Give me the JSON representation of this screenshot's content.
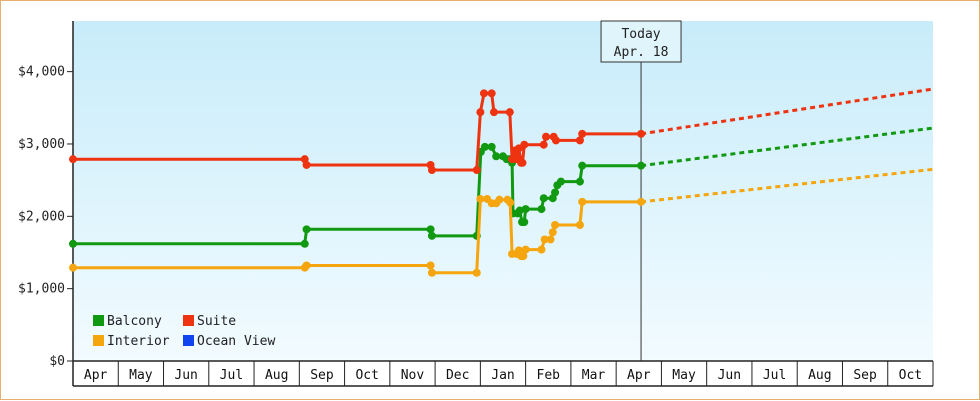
{
  "chart_data": {
    "type": "line",
    "title": "",
    "xlabel": "",
    "ylabel": "",
    "ylim": [
      0,
      4700
    ],
    "grid": true,
    "legend_placement": "bottom-left",
    "yticks": [
      {
        "value": 0,
        "label": "$0"
      },
      {
        "value": 1000,
        "label": "$1,000"
      },
      {
        "value": 2000,
        "label": "$2,000"
      },
      {
        "value": 3000,
        "label": "$3,000"
      },
      {
        "value": 4000,
        "label": "$4,000"
      }
    ],
    "months": [
      "Apr",
      "May",
      "Jun",
      "Jul",
      "Aug",
      "Sep",
      "Oct",
      "Nov",
      "Dec",
      "Jan",
      "Feb",
      "Mar",
      "Apr",
      "May",
      "Jun",
      "Jul",
      "Aug",
      "Sep",
      "Oct"
    ],
    "today": {
      "line1": "Today",
      "line2": "Apr. 18",
      "x": 12.55
    },
    "series": [
      {
        "name": "Balcony",
        "color": "#119911",
        "points": [
          [
            0.0,
            1620
          ],
          [
            5.12,
            1620
          ],
          [
            5.16,
            1820
          ],
          [
            7.9,
            1820
          ],
          [
            7.93,
            1730
          ],
          [
            8.92,
            1730
          ],
          [
            9.01,
            2890
          ],
          [
            9.1,
            2960
          ],
          [
            9.25,
            2960
          ],
          [
            9.35,
            2830
          ],
          [
            9.5,
            2830
          ],
          [
            9.58,
            2790
          ],
          [
            9.65,
            2790
          ],
          [
            9.7,
            2740
          ],
          [
            9.72,
            2040
          ],
          [
            9.82,
            2040
          ],
          [
            9.87,
            2080
          ],
          [
            9.92,
            1920
          ],
          [
            9.97,
            1920
          ],
          [
            10.0,
            2100
          ],
          [
            10.35,
            2100
          ],
          [
            10.4,
            2250
          ],
          [
            10.6,
            2250
          ],
          [
            10.65,
            2330
          ],
          [
            10.7,
            2430
          ],
          [
            10.78,
            2480
          ],
          [
            11.2,
            2480
          ],
          [
            11.25,
            2700
          ],
          [
            12.55,
            2700
          ]
        ],
        "forecast": [
          [
            12.55,
            2700
          ],
          [
            19.0,
            3220
          ]
        ]
      },
      {
        "name": "Suite",
        "color": "#ee3311",
        "points": [
          [
            0.0,
            2790
          ],
          [
            5.12,
            2790
          ],
          [
            5.16,
            2710
          ],
          [
            7.9,
            2710
          ],
          [
            7.93,
            2640
          ],
          [
            8.92,
            2640
          ],
          [
            9.0,
            3440
          ],
          [
            9.08,
            3700
          ],
          [
            9.25,
            3700
          ],
          [
            9.3,
            3440
          ],
          [
            9.65,
            3440
          ],
          [
            9.7,
            2790
          ],
          [
            9.76,
            2910
          ],
          [
            9.8,
            2790
          ],
          [
            9.85,
            2940
          ],
          [
            9.9,
            2740
          ],
          [
            9.93,
            2740
          ],
          [
            9.97,
            2990
          ],
          [
            10.4,
            2990
          ],
          [
            10.45,
            3100
          ],
          [
            10.62,
            3100
          ],
          [
            10.67,
            3050
          ],
          [
            11.2,
            3050
          ],
          [
            11.25,
            3140
          ],
          [
            12.55,
            3140
          ]
        ],
        "forecast": [
          [
            12.55,
            3140
          ],
          [
            19.0,
            3760
          ]
        ]
      },
      {
        "name": "Interior",
        "color": "#f5a50d",
        "points": [
          [
            0.0,
            1290
          ],
          [
            5.12,
            1290
          ],
          [
            5.16,
            1320
          ],
          [
            7.9,
            1320
          ],
          [
            7.93,
            1220
          ],
          [
            8.92,
            1220
          ],
          [
            9.0,
            2240
          ],
          [
            9.15,
            2240
          ],
          [
            9.25,
            2180
          ],
          [
            9.35,
            2180
          ],
          [
            9.42,
            2230
          ],
          [
            9.6,
            2230
          ],
          [
            9.66,
            2190
          ],
          [
            9.7,
            1480
          ],
          [
            9.8,
            1480
          ],
          [
            9.85,
            1530
          ],
          [
            9.9,
            1450
          ],
          [
            9.95,
            1450
          ],
          [
            10.0,
            1540
          ],
          [
            10.35,
            1540
          ],
          [
            10.42,
            1680
          ],
          [
            10.55,
            1680
          ],
          [
            10.6,
            1780
          ],
          [
            10.65,
            1880
          ],
          [
            11.2,
            1880
          ],
          [
            11.25,
            2200
          ],
          [
            12.55,
            2200
          ]
        ],
        "forecast": [
          [
            12.55,
            2200
          ],
          [
            19.0,
            2650
          ]
        ]
      },
      {
        "name": "Ocean View",
        "color": "#1144ee",
        "points": [],
        "forecast": []
      }
    ],
    "legend": [
      {
        "name": "Balcony",
        "color": "#119911"
      },
      {
        "name": "Suite",
        "color": "#ee3311"
      },
      {
        "name": "Interior",
        "color": "#f5a50d"
      },
      {
        "name": "Ocean View",
        "color": "#1144ee"
      }
    ]
  }
}
